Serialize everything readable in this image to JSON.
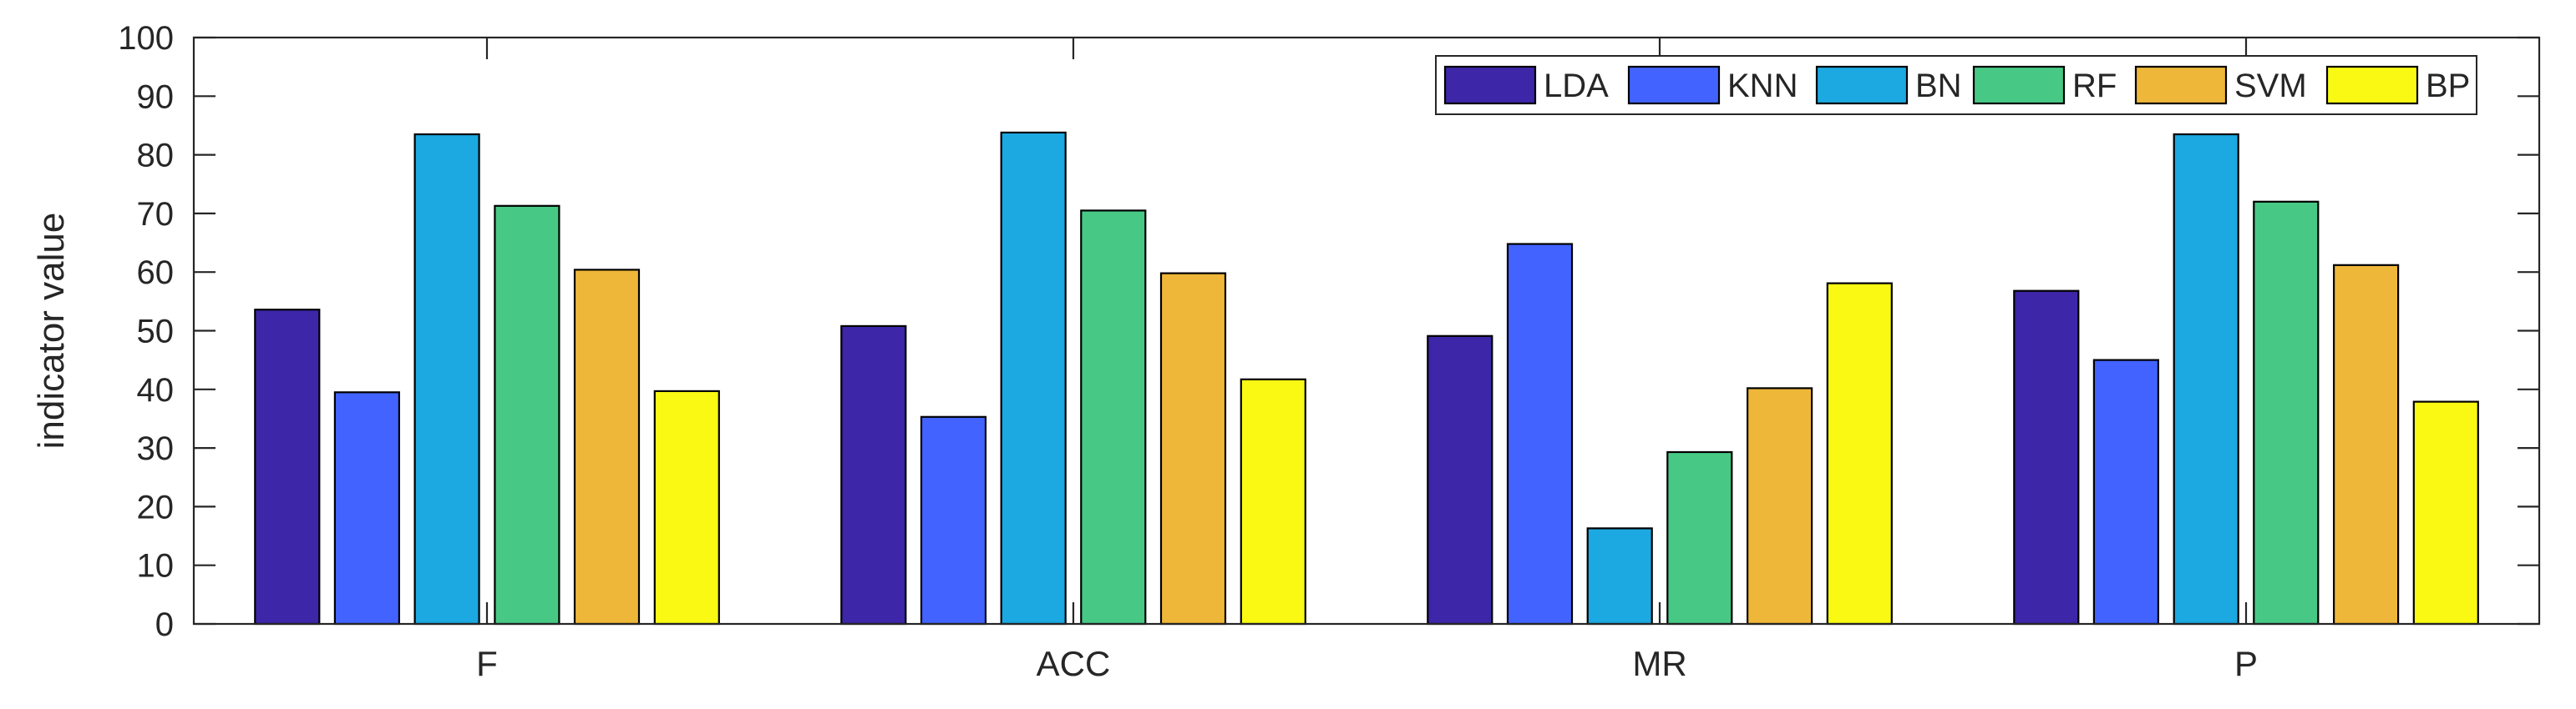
{
  "chart_data": {
    "type": "bar",
    "title": "",
    "xlabel": "",
    "ylabel": "indicator value",
    "ylim": [
      0,
      100
    ],
    "yticks": [
      0,
      10,
      20,
      30,
      40,
      50,
      60,
      70,
      80,
      90,
      100
    ],
    "grid": false,
    "legend_position": "top-right",
    "categories": [
      "F",
      "ACC",
      "MR",
      "P"
    ],
    "series": [
      {
        "name": "LDA",
        "color": "#3d26a8",
        "values": [
          53.6,
          50.8,
          49.1,
          56.8
        ]
      },
      {
        "name": "KNN",
        "color": "#4263ff",
        "values": [
          39.5,
          35.3,
          64.8,
          45.0
        ]
      },
      {
        "name": "BN",
        "color": "#1ca8e0",
        "values": [
          83.5,
          83.8,
          16.3,
          83.5
        ]
      },
      {
        "name": "RF",
        "color": "#47c985",
        "values": [
          71.3,
          70.5,
          29.3,
          72.0
        ]
      },
      {
        "name": "SVM",
        "color": "#efb739",
        "values": [
          60.4,
          59.8,
          40.2,
          61.2
        ]
      },
      {
        "name": "BP",
        "color": "#f9f914",
        "values": [
          39.7,
          41.7,
          58.1,
          37.9
        ]
      }
    ]
  }
}
